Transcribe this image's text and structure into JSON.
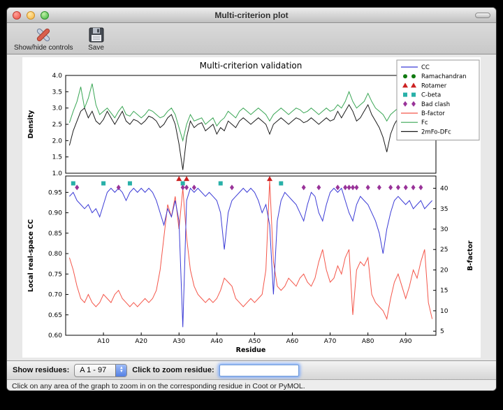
{
  "window": {
    "title": "Multi-criterion plot",
    "toolbar": {
      "show_hide_label": "Show/hide controls",
      "save_label": "Save"
    }
  },
  "controls": {
    "show_residues_label": "Show residues:",
    "residue_range_value": "A  1 - 97",
    "zoom_label": "Click to zoom residue:",
    "zoom_input_value": ""
  },
  "status_bar": "Click on any area of the graph to zoom in on the corresponding residue in Coot or PyMOL.",
  "chart_data": {
    "type": "line",
    "title": "Multi-criterion validation",
    "xlabel": "Residue",
    "x_range": [
      0,
      98
    ],
    "x_tick_values": [
      10,
      20,
      30,
      40,
      50,
      60,
      70,
      80,
      90
    ],
    "x_tick_labels": [
      "A10",
      "A20",
      "A30",
      "A40",
      "A50",
      "A60",
      "A70",
      "A80",
      "A90"
    ],
    "residue_start": 1,
    "top_plot": {
      "ylabel": "Density",
      "ylim": [
        1.0,
        4.0
      ],
      "yticks": [
        1.0,
        1.5,
        2.0,
        2.5,
        3.0,
        3.5,
        4.0
      ],
      "series": [
        {
          "name": "Fc",
          "color": "#3aa655",
          "values": [
            2.55,
            2.9,
            3.2,
            3.65,
            3.0,
            3.3,
            3.75,
            3.1,
            2.8,
            2.9,
            3.0,
            2.85,
            2.7,
            2.9,
            3.05,
            2.8,
            2.75,
            2.9,
            2.8,
            2.7,
            2.8,
            2.95,
            2.9,
            2.8,
            2.7,
            2.75,
            2.9,
            3.0,
            2.8,
            2.4,
            2.0,
            2.5,
            2.8,
            2.6,
            2.65,
            2.7,
            2.5,
            2.6,
            2.7,
            2.45,
            2.6,
            2.7,
            2.9,
            2.8,
            2.7,
            2.9,
            3.0,
            2.9,
            2.8,
            2.9,
            3.0,
            2.9,
            2.8,
            2.6,
            2.8,
            2.9,
            3.0,
            2.9,
            2.8,
            2.9,
            3.0,
            2.95,
            2.85,
            2.9,
            3.0,
            2.9,
            2.8,
            2.9,
            3.0,
            2.9,
            2.95,
            3.1,
            3.0,
            3.2,
            3.5,
            3.2,
            3.0,
            3.1,
            3.2,
            3.45,
            3.2,
            3.0,
            2.9,
            2.8,
            2.6,
            2.8,
            2.9,
            3.0,
            2.9,
            2.8,
            2.9,
            3.0,
            2.9,
            3.4,
            3.45,
            3.0,
            2.6
          ]
        },
        {
          "name": "2mFo-DFc",
          "color": "#1a1a1a",
          "values": [
            1.85,
            2.3,
            2.6,
            2.9,
            3.0,
            2.7,
            2.9,
            2.6,
            2.5,
            2.65,
            2.9,
            2.7,
            2.5,
            2.7,
            2.9,
            2.6,
            2.5,
            2.65,
            2.6,
            2.5,
            2.6,
            2.75,
            2.7,
            2.6,
            2.4,
            2.5,
            2.7,
            2.8,
            2.5,
            1.9,
            1.1,
            2.1,
            2.6,
            2.4,
            2.5,
            2.55,
            2.3,
            2.4,
            2.5,
            2.2,
            2.4,
            2.3,
            2.6,
            2.5,
            2.4,
            2.6,
            2.7,
            2.6,
            2.5,
            2.6,
            2.7,
            2.6,
            2.5,
            2.2,
            2.5,
            2.6,
            2.7,
            2.6,
            2.5,
            2.6,
            2.7,
            2.65,
            2.55,
            2.6,
            2.7,
            2.6,
            2.5,
            2.6,
            2.7,
            2.6,
            2.65,
            2.9,
            2.7,
            2.9,
            3.1,
            2.9,
            2.6,
            2.7,
            2.9,
            3.1,
            2.8,
            2.6,
            2.4,
            2.1,
            1.65,
            2.2,
            2.5,
            2.7,
            2.6,
            2.4,
            2.5,
            2.6,
            2.5,
            2.9,
            3.0,
            2.9,
            2.9
          ]
        }
      ]
    },
    "bottom_plot": {
      "ylabel_left": "Local real-space CC",
      "ylim_left": [
        0.6,
        0.99
      ],
      "yticks_left": [
        0.6,
        0.65,
        0.7,
        0.75,
        0.8,
        0.85,
        0.9,
        0.95
      ],
      "ylabel_right": "B-factor",
      "ylim_right": [
        4,
        43
      ],
      "yticks_right": [
        5,
        10,
        15,
        20,
        25,
        30,
        35,
        40
      ],
      "series": [
        {
          "name": "B-factor",
          "axis": "right",
          "color": "#f4564a",
          "values": [
            23,
            20,
            16,
            13,
            12,
            14,
            12,
            11,
            12,
            14,
            13,
            12,
            14,
            15,
            13,
            12,
            11,
            12,
            11,
            12,
            13,
            12,
            13,
            15,
            20,
            28,
            36,
            33,
            38,
            30,
            40,
            28,
            20,
            16,
            14,
            13,
            12,
            13,
            12,
            13,
            15,
            18,
            17,
            16,
            13,
            12,
            11,
            12,
            13,
            12,
            13,
            14,
            20,
            42,
            22,
            16,
            15,
            16,
            18,
            17,
            16,
            18,
            19,
            17,
            16,
            18,
            22,
            25,
            20,
            17,
            18,
            21,
            19,
            23,
            25,
            9,
            20,
            22,
            21,
            23,
            14,
            12,
            11,
            10,
            8,
            13,
            17,
            19,
            16,
            13,
            16,
            20,
            18,
            22,
            25,
            12,
            8
          ]
        },
        {
          "name": "CC",
          "axis": "left",
          "color": "#3b3bd6",
          "values": [
            0.94,
            0.95,
            0.93,
            0.92,
            0.91,
            0.92,
            0.9,
            0.91,
            0.89,
            0.92,
            0.95,
            0.96,
            0.95,
            0.96,
            0.95,
            0.93,
            0.95,
            0.96,
            0.95,
            0.96,
            0.95,
            0.96,
            0.95,
            0.93,
            0.9,
            0.87,
            0.91,
            0.89,
            0.93,
            0.88,
            0.62,
            0.93,
            0.96,
            0.95,
            0.96,
            0.95,
            0.94,
            0.95,
            0.94,
            0.93,
            0.9,
            0.81,
            0.9,
            0.93,
            0.94,
            0.95,
            0.96,
            0.95,
            0.96,
            0.95,
            0.93,
            0.9,
            0.92,
            0.87,
            0.7,
            0.88,
            0.93,
            0.95,
            0.94,
            0.93,
            0.92,
            0.9,
            0.88,
            0.92,
            0.95,
            0.94,
            0.9,
            0.88,
            0.92,
            0.95,
            0.96,
            0.95,
            0.96,
            0.93,
            0.9,
            0.88,
            0.92,
            0.94,
            0.93,
            0.92,
            0.9,
            0.88,
            0.85,
            0.8,
            0.86,
            0.9,
            0.93,
            0.94,
            0.93,
            0.92,
            0.93,
            0.91,
            0.92,
            0.93,
            0.91,
            0.92,
            0.93
          ]
        }
      ],
      "outlier_markers": [
        {
          "name": "Ramachandran",
          "shape": "circle",
          "color": "#107a10",
          "residues": []
        },
        {
          "name": "Rotamer",
          "shape": "triangle",
          "color": "#cc2222",
          "residues": [
            30,
            32,
            54
          ]
        },
        {
          "name": "C-beta",
          "shape": "square",
          "color": "#28b0a8",
          "residues": [
            2,
            10,
            17,
            31,
            41,
            57
          ]
        },
        {
          "name": "Bad clash",
          "shape": "diamond",
          "color": "#993399",
          "residues": [
            3,
            14,
            31,
            32,
            34,
            44,
            63,
            67,
            72,
            74,
            75,
            76,
            77,
            80,
            83,
            86,
            88,
            90,
            92,
            94
          ]
        }
      ]
    },
    "legend": [
      {
        "label": "CC",
        "type": "line",
        "color": "#3b3bd6"
      },
      {
        "label": "Ramachandran",
        "type": "circle",
        "color": "#107a10"
      },
      {
        "label": "Rotamer",
        "type": "triangle",
        "color": "#cc2222"
      },
      {
        "label": "C-beta",
        "type": "square",
        "color": "#28b0a8"
      },
      {
        "label": "Bad clash",
        "type": "diamond",
        "color": "#993399"
      },
      {
        "label": "B-factor",
        "type": "line",
        "color": "#f4564a"
      },
      {
        "label": "Fc",
        "type": "line",
        "color": "#3aa655"
      },
      {
        "label": "2mFo-DFc",
        "type": "line",
        "color": "#1a1a1a"
      }
    ]
  }
}
